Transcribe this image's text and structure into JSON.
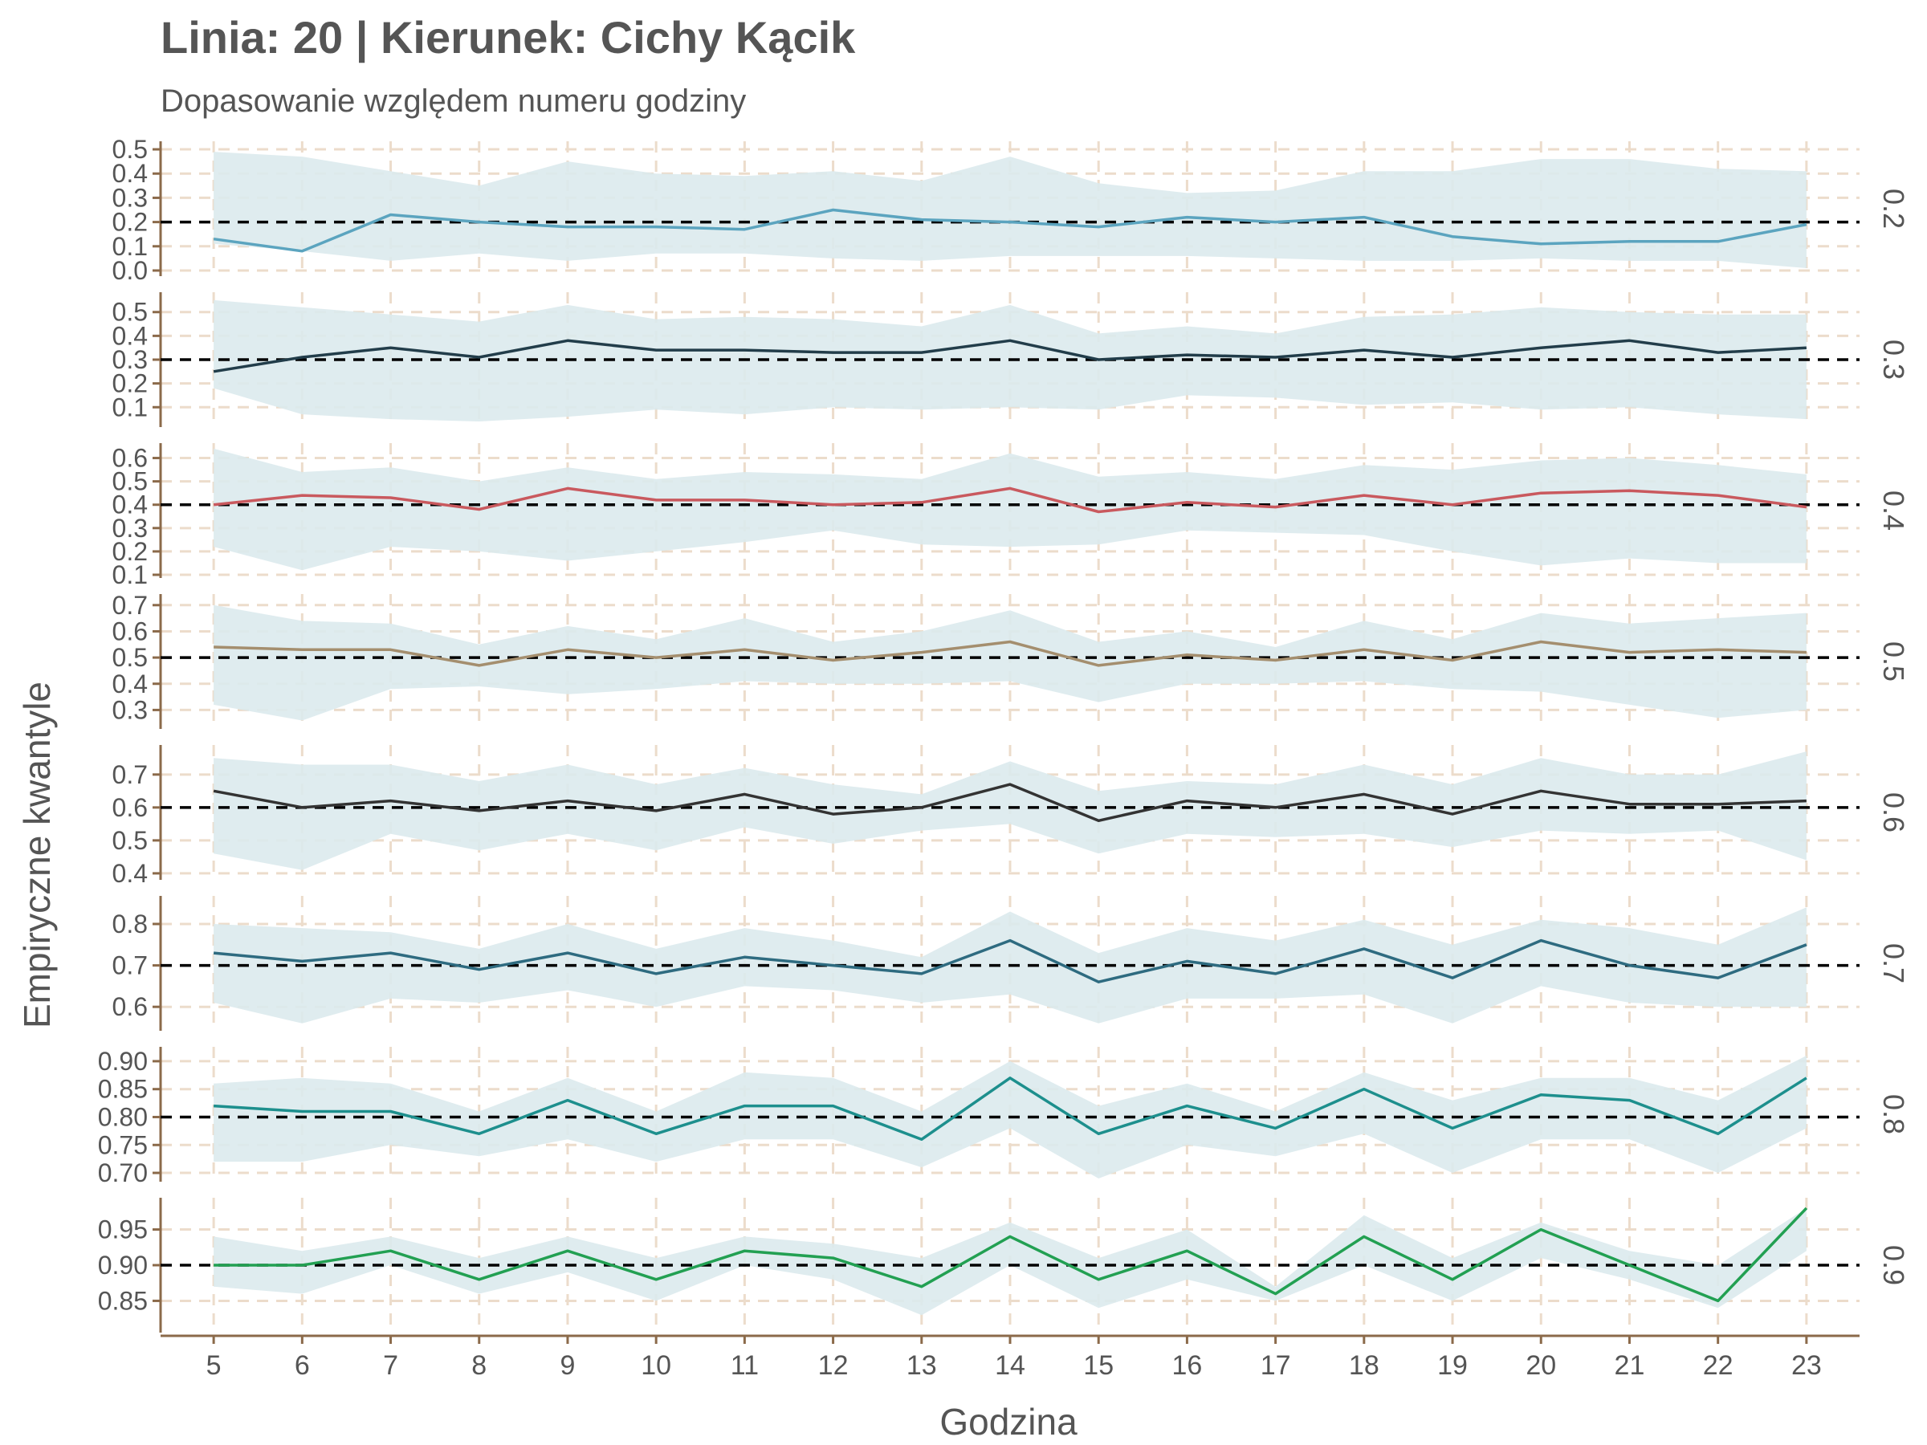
{
  "chart_data": {
    "type": "line",
    "title": "Linia: 20 | Kierunek: Cichy Kącik",
    "subtitle": "Dopasowanie względem numeru godziny",
    "xlabel": "Godzina",
    "ylabel": "Empiryczne kwantyle",
    "x": [
      5,
      6,
      7,
      8,
      9,
      10,
      11,
      12,
      13,
      14,
      15,
      16,
      17,
      18,
      19,
      20,
      21,
      22,
      23
    ],
    "xlim": [
      4.4,
      23.6
    ],
    "grid": true,
    "band_color": "#dbeaed",
    "reference_line": "dashed black at the panel quantile level",
    "panels": [
      {
        "label": "0.2",
        "reference": 0.2,
        "color": "#5ba4bf",
        "ylim": [
          -0.01,
          0.52
        ],
        "yticks": [
          "0.0",
          "0.1",
          "0.2",
          "0.3",
          "0.4",
          "0.5"
        ],
        "values": [
          0.13,
          0.08,
          0.23,
          0.2,
          0.18,
          0.18,
          0.17,
          0.25,
          0.21,
          0.2,
          0.18,
          0.22,
          0.2,
          0.22,
          0.14,
          0.11,
          0.12,
          0.12,
          0.19
        ],
        "band_lower": [
          0.11,
          0.08,
          0.04,
          0.07,
          0.04,
          0.07,
          0.07,
          0.05,
          0.04,
          0.06,
          0.06,
          0.06,
          0.05,
          0.04,
          0.04,
          0.05,
          0.04,
          0.04,
          0.01
        ],
        "band_upper": [
          0.49,
          0.47,
          0.41,
          0.35,
          0.45,
          0.4,
          0.39,
          0.41,
          0.37,
          0.47,
          0.36,
          0.32,
          0.33,
          0.41,
          0.41,
          0.46,
          0.46,
          0.42,
          0.41
        ]
      },
      {
        "label": "0.3",
        "reference": 0.3,
        "color": "#223d4a",
        "ylim": [
          0.03,
          0.57
        ],
        "yticks": [
          "0.1",
          "0.2",
          "0.3",
          "0.4",
          "0.5"
        ],
        "values": [
          0.25,
          0.31,
          0.35,
          0.31,
          0.38,
          0.34,
          0.34,
          0.33,
          0.33,
          0.38,
          0.3,
          0.32,
          0.31,
          0.34,
          0.31,
          0.35,
          0.38,
          0.33,
          0.35
        ],
        "band_lower": [
          0.18,
          0.07,
          0.05,
          0.04,
          0.06,
          0.09,
          0.07,
          0.1,
          0.09,
          0.1,
          0.09,
          0.15,
          0.14,
          0.11,
          0.12,
          0.09,
          0.1,
          0.07,
          0.05
        ],
        "band_upper": [
          0.55,
          0.52,
          0.49,
          0.46,
          0.53,
          0.47,
          0.48,
          0.47,
          0.44,
          0.53,
          0.41,
          0.44,
          0.41,
          0.48,
          0.49,
          0.52,
          0.5,
          0.49,
          0.49
        ]
      },
      {
        "label": "0.4",
        "reference": 0.4,
        "color": "#c9595e",
        "ylim": [
          0.1,
          0.65
        ],
        "yticks": [
          "0.1",
          "0.2",
          "0.3",
          "0.4",
          "0.5",
          "0.6"
        ],
        "values": [
          0.4,
          0.44,
          0.43,
          0.38,
          0.47,
          0.42,
          0.42,
          0.4,
          0.41,
          0.47,
          0.37,
          0.41,
          0.39,
          0.44,
          0.4,
          0.45,
          0.46,
          0.44,
          0.39
        ],
        "band_lower": [
          0.22,
          0.12,
          0.22,
          0.2,
          0.16,
          0.2,
          0.24,
          0.29,
          0.23,
          0.22,
          0.23,
          0.29,
          0.28,
          0.27,
          0.2,
          0.14,
          0.17,
          0.15,
          0.15
        ],
        "band_upper": [
          0.64,
          0.54,
          0.56,
          0.5,
          0.56,
          0.51,
          0.54,
          0.53,
          0.51,
          0.62,
          0.52,
          0.54,
          0.51,
          0.57,
          0.55,
          0.59,
          0.6,
          0.57,
          0.53
        ]
      },
      {
        "label": "0.5",
        "reference": 0.5,
        "color": "#a48e6e",
        "ylim": [
          0.24,
          0.73
        ],
        "yticks": [
          "0.3",
          "0.4",
          "0.5",
          "0.6",
          "0.7"
        ],
        "values": [
          0.54,
          0.53,
          0.53,
          0.47,
          0.53,
          0.5,
          0.53,
          0.49,
          0.52,
          0.56,
          0.47,
          0.51,
          0.49,
          0.53,
          0.49,
          0.56,
          0.52,
          0.53,
          0.52
        ],
        "band_lower": [
          0.32,
          0.26,
          0.38,
          0.39,
          0.36,
          0.38,
          0.41,
          0.4,
          0.4,
          0.41,
          0.33,
          0.4,
          0.4,
          0.41,
          0.38,
          0.37,
          0.32,
          0.27,
          0.3
        ],
        "band_upper": [
          0.7,
          0.64,
          0.63,
          0.55,
          0.62,
          0.57,
          0.65,
          0.56,
          0.6,
          0.68,
          0.56,
          0.6,
          0.54,
          0.64,
          0.57,
          0.67,
          0.63,
          0.65,
          0.67
        ]
      },
      {
        "label": "0.6",
        "reference": 0.6,
        "color": "#333333",
        "ylim": [
          0.39,
          0.78
        ],
        "yticks": [
          "0.4",
          "0.5",
          "0.6",
          "0.7"
        ],
        "values": [
          0.65,
          0.6,
          0.62,
          0.59,
          0.62,
          0.59,
          0.64,
          0.58,
          0.6,
          0.67,
          0.56,
          0.62,
          0.6,
          0.64,
          0.58,
          0.65,
          0.61,
          0.61,
          0.62
        ],
        "band_lower": [
          0.46,
          0.41,
          0.52,
          0.47,
          0.52,
          0.47,
          0.54,
          0.49,
          0.53,
          0.55,
          0.46,
          0.52,
          0.51,
          0.52,
          0.48,
          0.53,
          0.52,
          0.53,
          0.44
        ],
        "band_upper": [
          0.75,
          0.73,
          0.73,
          0.68,
          0.73,
          0.67,
          0.72,
          0.67,
          0.64,
          0.74,
          0.65,
          0.68,
          0.67,
          0.73,
          0.67,
          0.75,
          0.7,
          0.7,
          0.77
        ]
      },
      {
        "label": "0.7",
        "reference": 0.7,
        "color": "#2e6b80",
        "ylim": [
          0.55,
          0.86
        ],
        "yticks": [
          "0.6",
          "0.7",
          "0.8"
        ],
        "values": [
          0.73,
          0.71,
          0.73,
          0.69,
          0.73,
          0.68,
          0.72,
          0.7,
          0.68,
          0.76,
          0.66,
          0.71,
          0.68,
          0.74,
          0.67,
          0.76,
          0.7,
          0.67,
          0.75
        ],
        "band_lower": [
          0.61,
          0.56,
          0.62,
          0.61,
          0.64,
          0.6,
          0.65,
          0.64,
          0.61,
          0.63,
          0.56,
          0.62,
          0.62,
          0.63,
          0.56,
          0.65,
          0.61,
          0.6,
          0.6
        ],
        "band_upper": [
          0.8,
          0.79,
          0.78,
          0.74,
          0.8,
          0.74,
          0.79,
          0.76,
          0.72,
          0.83,
          0.73,
          0.79,
          0.76,
          0.81,
          0.75,
          0.81,
          0.79,
          0.75,
          0.84
        ]
      },
      {
        "label": "0.8",
        "reference": 0.8,
        "color": "#1d8f8d",
        "ylim": [
          0.69,
          0.92
        ],
        "yticks": [
          "0.70",
          "0.75",
          "0.80",
          "0.85",
          "0.90"
        ],
        "values": [
          0.82,
          0.81,
          0.81,
          0.77,
          0.83,
          0.77,
          0.82,
          0.82,
          0.76,
          0.87,
          0.77,
          0.82,
          0.78,
          0.85,
          0.78,
          0.84,
          0.83,
          0.77,
          0.87
        ],
        "band_lower": [
          0.72,
          0.72,
          0.75,
          0.73,
          0.76,
          0.72,
          0.76,
          0.76,
          0.71,
          0.78,
          0.69,
          0.75,
          0.73,
          0.77,
          0.7,
          0.76,
          0.76,
          0.7,
          0.78
        ],
        "band_upper": [
          0.86,
          0.87,
          0.86,
          0.81,
          0.87,
          0.81,
          0.88,
          0.87,
          0.81,
          0.9,
          0.82,
          0.86,
          0.81,
          0.88,
          0.83,
          0.87,
          0.87,
          0.83,
          0.91
        ]
      },
      {
        "label": "0.9",
        "reference": 0.9,
        "color": "#22a052",
        "ylim": [
          0.81,
          0.99
        ],
        "yticks": [
          "0.85",
          "0.90",
          "0.95"
        ],
        "values": [
          0.9,
          0.9,
          0.92,
          0.88,
          0.92,
          0.88,
          0.92,
          0.91,
          0.87,
          0.94,
          0.88,
          0.92,
          0.86,
          0.94,
          0.88,
          0.95,
          0.9,
          0.85,
          0.98
        ],
        "band_lower": [
          0.87,
          0.86,
          0.9,
          0.86,
          0.89,
          0.85,
          0.9,
          0.88,
          0.83,
          0.9,
          0.84,
          0.88,
          0.85,
          0.9,
          0.85,
          0.91,
          0.88,
          0.84,
          0.92
        ],
        "band_upper": [
          0.94,
          0.92,
          0.94,
          0.91,
          0.94,
          0.91,
          0.94,
          0.93,
          0.91,
          0.96,
          0.91,
          0.95,
          0.87,
          0.97,
          0.91,
          0.96,
          0.92,
          0.9,
          0.98
        ]
      }
    ]
  }
}
